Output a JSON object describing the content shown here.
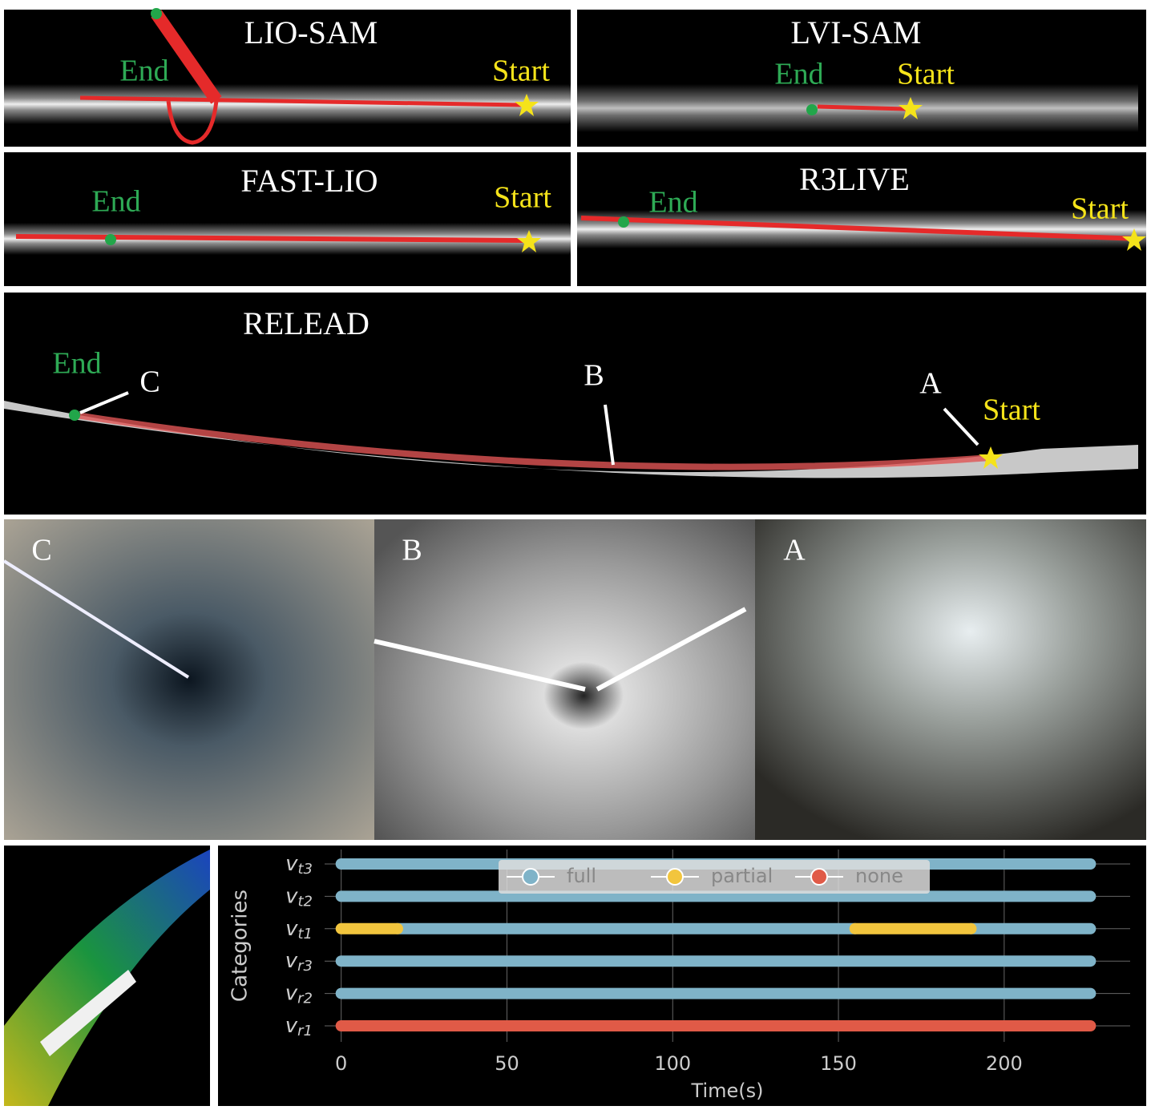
{
  "map_panels": [
    {
      "title": "LIO-SAM",
      "end": "End",
      "start": "Start"
    },
    {
      "title": "LVI-SAM",
      "end": "End",
      "start": "Start"
    },
    {
      "title": "FAST-LIO",
      "end": "End",
      "start": "Start"
    },
    {
      "title": "R3LIVE",
      "end": "End",
      "start": "Start"
    }
  ],
  "relead": {
    "title": "RELEAD",
    "end": "End",
    "start": "Start",
    "points": [
      "C",
      "B",
      "A"
    ]
  },
  "photos": [
    "C",
    "B",
    "A"
  ],
  "chart_data": {
    "type": "timeline",
    "ylabel": "Categories",
    "xlabel": "Time(s)",
    "categories": [
      "vt3",
      "vt2",
      "vt1",
      "vr3",
      "vr2",
      "vr1"
    ],
    "xlim": [
      -5,
      238
    ],
    "xticks": [
      0,
      50,
      100,
      150,
      200
    ],
    "grid": true,
    "legend": "upper center",
    "series": [
      {
        "name": "full",
        "color": "#7fb3c8",
        "rows": [
          [
            [
              0,
              226
            ]
          ],
          [
            [
              0,
              226
            ]
          ],
          [
            [
              17,
              155
            ],
            [
              190,
              226
            ]
          ],
          [
            [
              0,
              226
            ]
          ],
          [
            [
              0,
              226
            ]
          ],
          []
        ]
      },
      {
        "name": "partial",
        "color": "#f2c53d",
        "rows": [
          [],
          [],
          [
            [
              0,
              17
            ],
            [
              155,
              190
            ]
          ],
          [],
          [],
          []
        ]
      },
      {
        "name": "none",
        "color": "#e05a47",
        "rows": [
          [],
          [],
          [],
          [],
          [],
          [
            [
              0,
              226
            ]
          ]
        ]
      }
    ]
  }
}
